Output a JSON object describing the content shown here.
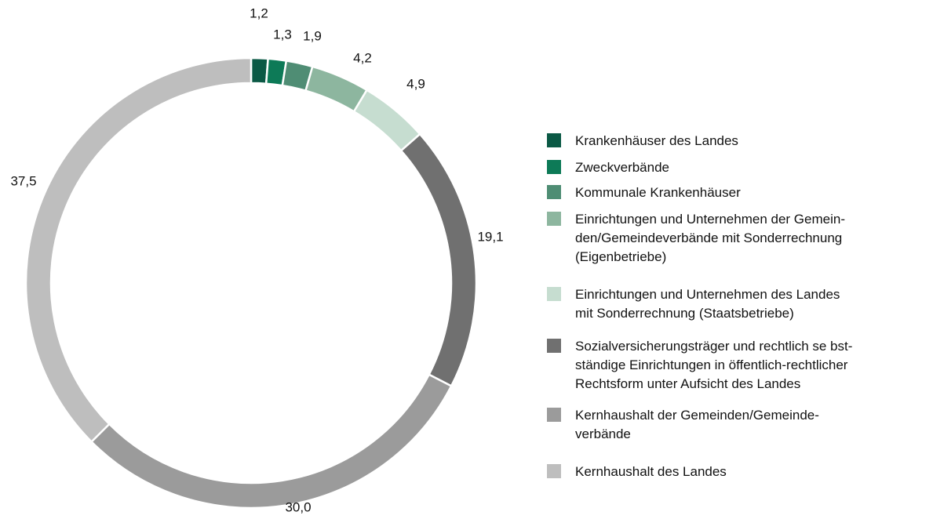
{
  "chart_data": {
    "type": "donut",
    "series": [
      {
        "name": "Krankenhäuser des Landes",
        "color": "#0b5945"
      },
      {
        "name": "Zweckverbände",
        "color": "#0d7a57"
      },
      {
        "name": "Kommunale Krankenhäuser",
        "color": "#4f8d74"
      },
      {
        "name": "Einrichtungen und Unternehmen der Gemein-\nden/Gemeindeverbände mit Sonderrechnung\n(Eigenbetriebe)",
        "color": "#8db69f"
      },
      {
        "name": "Einrichtungen und Unternehmen des Landes\n mit Sonderrechnung (Staatsbetriebe)",
        "color": "#c6ddd0"
      },
      {
        "name": "Sozialversicherungsträger und rechtlich se bst-\nständige Einrichtungen in öffentlich-rechtlicher\nRechtsform unter Aufsicht des Landes",
        "color": "#707070"
      },
      {
        "name": "Kernhaushalt der Gemeinden/Gemeinde-\nverbände",
        "color": "#9b9b9b"
      },
      {
        "name": "Kernhaushalt des Landes",
        "color": "#bebebe"
      }
    ],
    "values": [
      1.2,
      1.3,
      1.9,
      4.2,
      4.9,
      19.1,
      30.0,
      37.5
    ],
    "value_labels": [
      "1,2",
      "1,3",
      "1,9",
      "4,2",
      "4,9",
      "19,1",
      "30,0",
      "37,5"
    ]
  }
}
